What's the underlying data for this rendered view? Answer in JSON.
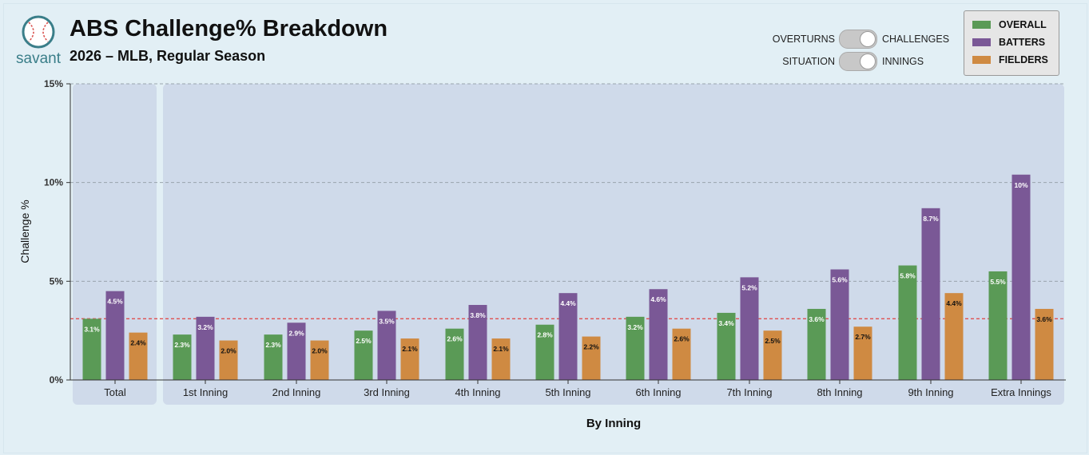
{
  "header": {
    "logo_text": "savant",
    "title": "ABS Challenge% Breakdown",
    "subtitle": "2026 – MLB, Regular Season"
  },
  "toggles": [
    {
      "left_label": "OVERTURNS",
      "right_label": "CHALLENGES",
      "selected": "CHALLENGES"
    },
    {
      "left_label": "SITUATION",
      "right_label": "INNINGS",
      "selected": "INNINGS"
    }
  ],
  "colors": {
    "overall": "#5a9a56",
    "batters": "#7a5896",
    "fielders": "#cf8a42",
    "panel": "#cfdaea",
    "reference_line": "#e05050"
  },
  "legend": [
    {
      "label": "OVERALL",
      "color": "#5a9a56"
    },
    {
      "label": "BATTERS",
      "color": "#7a5896"
    },
    {
      "label": "FIELDERS",
      "color": "#cf8a42"
    }
  ],
  "chart_data": {
    "type": "bar",
    "xlabel": "By Inning",
    "ylabel": "Challenge %",
    "ylim": [
      0,
      15
    ],
    "yticks": [
      "0%",
      "5%",
      "10%",
      "15%"
    ],
    "grid": true,
    "reference_line": 3.1,
    "categories": [
      "Total",
      "1st Inning",
      "2nd Inning",
      "3rd Inning",
      "4th Inning",
      "5th Inning",
      "6th Inning",
      "7th Inning",
      "8th Inning",
      "9th Inning",
      "Extra Innings"
    ],
    "series": [
      {
        "name": "OVERALL",
        "values": [
          3.1,
          2.3,
          2.3,
          2.5,
          2.6,
          2.8,
          3.2,
          3.4,
          3.6,
          5.8,
          5.5
        ],
        "labels": [
          "3.1%",
          "2.3%",
          "2.3%",
          "2.5%",
          "2.6%",
          "2.8%",
          "3.2%",
          "3.4%",
          "3.6%",
          "5.8%",
          "5.5%"
        ]
      },
      {
        "name": "BATTERS",
        "values": [
          4.5,
          3.2,
          2.9,
          3.5,
          3.8,
          4.4,
          4.6,
          5.2,
          5.6,
          8.7,
          10.4
        ],
        "labels": [
          "4.5%",
          "3.2%",
          "2.9%",
          "3.5%",
          "3.8%",
          "4.4%",
          "4.6%",
          "5.2%",
          "5.6%",
          "8.7%",
          "10%"
        ]
      },
      {
        "name": "FIELDERS",
        "values": [
          2.4,
          2.0,
          2.0,
          2.1,
          2.1,
          2.2,
          2.6,
          2.5,
          2.7,
          4.4,
          3.6
        ],
        "labels": [
          "2.4%",
          "2.0%",
          "2.0%",
          "2.1%",
          "2.1%",
          "2.2%",
          "2.6%",
          "2.5%",
          "2.7%",
          "4.4%",
          "3.6%"
        ]
      }
    ]
  }
}
